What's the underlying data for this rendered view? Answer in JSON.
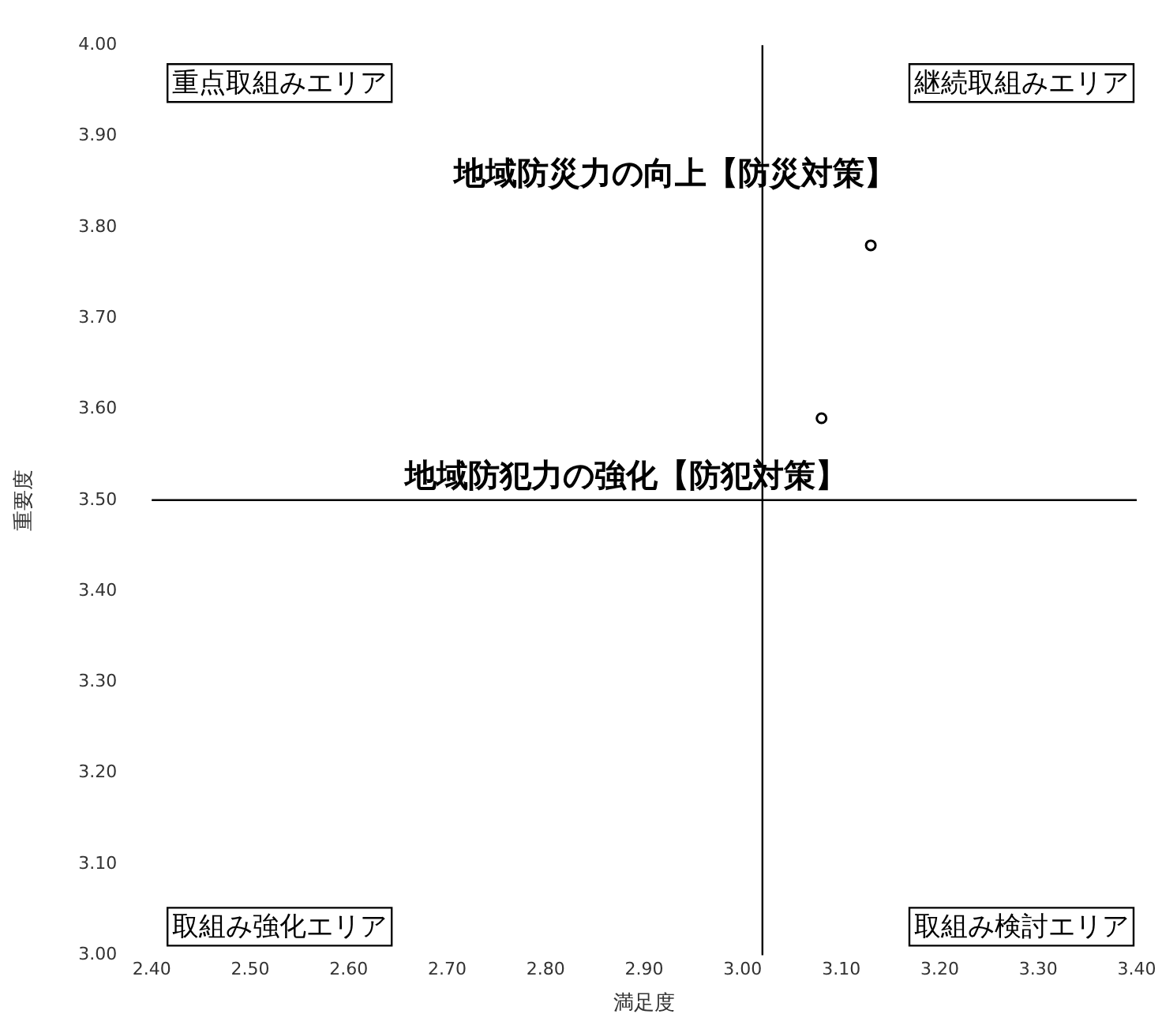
{
  "chart_data": {
    "type": "scatter",
    "xlabel": "満足度",
    "ylabel": "重要度",
    "x": [
      3.08,
      3.13
    ],
    "values": [
      3.59,
      3.78
    ],
    "color": "#000000",
    "marker": "circle",
    "xlim": [
      2.4,
      3.4
    ],
    "xticks": [
      {
        "value": 2.4,
        "label": "2.40"
      },
      {
        "value": 2.5,
        "label": "2.50"
      },
      {
        "value": 2.6,
        "label": "2.60"
      },
      {
        "value": 2.7,
        "label": "2.70"
      },
      {
        "value": 2.8,
        "label": "2.80"
      },
      {
        "value": 2.9,
        "label": "2.90"
      },
      {
        "value": 3.0,
        "label": "3.00"
      },
      {
        "value": 3.1,
        "label": "3.10"
      },
      {
        "value": 3.2,
        "label": "3.20"
      },
      {
        "value": 3.3,
        "label": "3.30"
      },
      {
        "value": 3.4,
        "label": "3.40"
      }
    ],
    "ylim": [
      3.0,
      4.0
    ],
    "yticks": [
      {
        "value": 3.0,
        "label": "3.00"
      },
      {
        "value": 3.1,
        "label": "3.10"
      },
      {
        "value": 3.2,
        "label": "3.20"
      },
      {
        "value": 3.3,
        "label": "3.30"
      },
      {
        "value": 3.4,
        "label": "3.40"
      },
      {
        "value": 3.5,
        "label": "3.50"
      },
      {
        "value": 3.6,
        "label": "3.60"
      },
      {
        "value": 3.7,
        "label": "3.70"
      },
      {
        "value": 3.8,
        "label": "3.80"
      },
      {
        "value": 3.9,
        "label": "3.90"
      },
      {
        "value": 4.0,
        "label": "4.00"
      }
    ],
    "ref_lines": [
      {
        "axis": "x",
        "value": 3.02,
        "color": "#000000"
      },
      {
        "axis": "y",
        "value": 3.5,
        "color": "#000000"
      }
    ],
    "annotations": [
      {
        "text": "地域防災力の向上【防災対策】",
        "x": 3.13,
        "y": 3.78
      },
      {
        "text": "地域防犯力の強化【防犯対策】",
        "x": 3.08,
        "y": 3.59
      },
      "重点取組みエリア",
      "継続取組みエリア",
      "取組み強化エリア",
      "取組み検討エリア"
    ],
    "grid": false,
    "legend": false
  }
}
